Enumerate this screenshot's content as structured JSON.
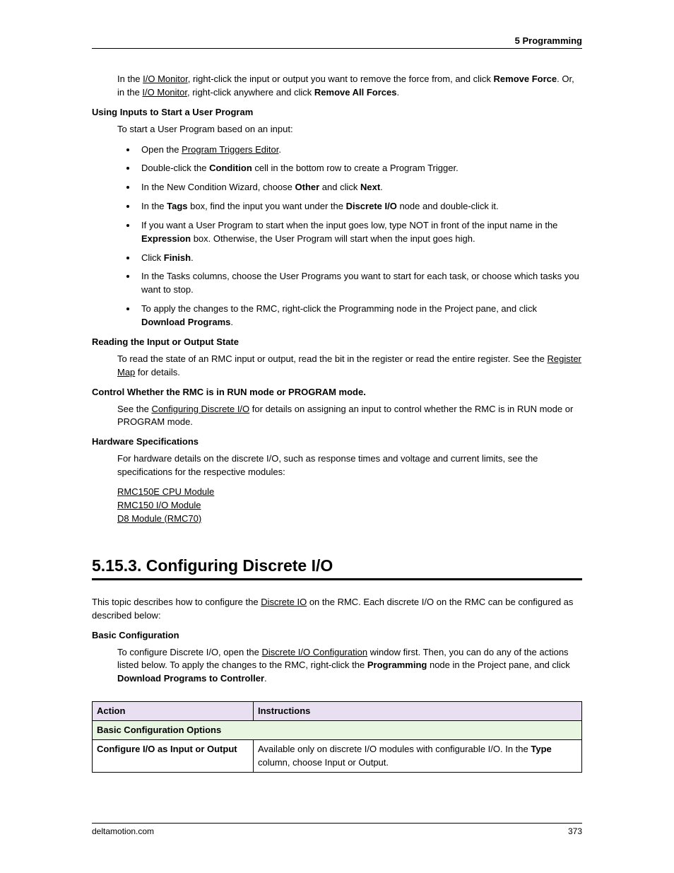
{
  "header": {
    "chapter": "5  Programming"
  },
  "intro_para": {
    "pre1": "In the ",
    "link1": "I/O Monitor",
    "mid1": ", right-click the input or output you want to remove the force from, and click ",
    "bold1": "Remove Force",
    "mid2": ". Or, in the ",
    "link2": "I/O Monitor",
    "mid3": ", right-click anywhere and click ",
    "bold2": "Remove All Forces",
    "tail": "."
  },
  "h_using": "Using Inputs to Start a User Program",
  "using_lead": "To start a User Program based on an input:",
  "bullets": {
    "b1_pre": "Open the ",
    "b1_link": "Program Triggers Editor",
    "b1_post": ".",
    "b2_pre": "Double-click the ",
    "b2_bold": "Condition",
    "b2_post": " cell in the bottom row to create a Program Trigger.",
    "b3_pre": "In the New Condition Wizard, choose ",
    "b3_bold1": "Other",
    "b3_mid": " and click ",
    "b3_bold2": "Next",
    "b3_post": ".",
    "b4_pre": "In the ",
    "b4_bold1": "Tags",
    "b4_mid": " box, find the input you want under the ",
    "b4_bold2": "Discrete I/O",
    "b4_post": " node and double-click it.",
    "b5_pre": "If you want a User Program to start when the input goes low, type NOT in front of the input name in the ",
    "b5_bold": "Expression",
    "b5_post": " box. Otherwise, the User Program will start when the input goes high.",
    "b6_pre": "Click ",
    "b6_bold": "Finish",
    "b6_post": ".",
    "b7": "In the Tasks columns, choose the User Programs you want to start for each task, or choose which tasks you want to stop.",
    "b8_pre": "To apply the changes to the RMC, right-click the Programming node in the Project pane, and click ",
    "b8_bold": "Download Programs",
    "b8_post": "."
  },
  "h_reading": "Reading the Input or Output State",
  "reading_para": {
    "pre": "To read the state of an RMC input or output, read the bit in the register or read the entire register. See the ",
    "link": "Register Map",
    "post": " for details."
  },
  "h_control": "Control Whether the RMC is in RUN mode or PROGRAM mode.",
  "control_para": {
    "pre": "See the ",
    "link": "Configuring Discrete I/O",
    "post": " for details on assigning an input to control whether the RMC is in RUN mode or PROGRAM mode."
  },
  "h_hw": "Hardware Specifications",
  "hw_para": "For hardware details on the discrete I/O, such as response times and voltage and current limits, see the specifications for the respective modules:",
  "hw_links": {
    "l1": "RMC150E CPU Module",
    "l2": "RMC150 I/O Module",
    "l3": "D8 Module (RMC70)"
  },
  "section": {
    "title": "5.15.3. Configuring Discrete I/O",
    "intro_pre": "This topic describes how to configure the ",
    "intro_link": "Discrete IO",
    "intro_post": " on the RMC. Each discrete I/O on the RMC can be configured as described below:"
  },
  "h_basic": "Basic Configuration",
  "basic_para": {
    "pre": "To configure Discrete I/O, open the ",
    "link": "Discrete I/O Configuration",
    "mid": " window first. Then, you can do any of the actions listed below. To apply the changes to the RMC, right-click the ",
    "bold1": "Programming",
    "mid2": " node in the Project pane, and click ",
    "bold2": "Download Programs to Controller",
    "post": "."
  },
  "table": {
    "col_action": "Action",
    "col_instructions": "Instructions",
    "section_label": "Basic Configuration Options",
    "row1_action": "Configure I/O as Input or Output",
    "row1_instr_pre": "Available only on discrete I/O modules with configurable I/O. In the ",
    "row1_instr_bold": "Type",
    "row1_instr_post": " column, choose Input or Output."
  },
  "footer": {
    "site": "deltamotion.com",
    "page": "373"
  }
}
